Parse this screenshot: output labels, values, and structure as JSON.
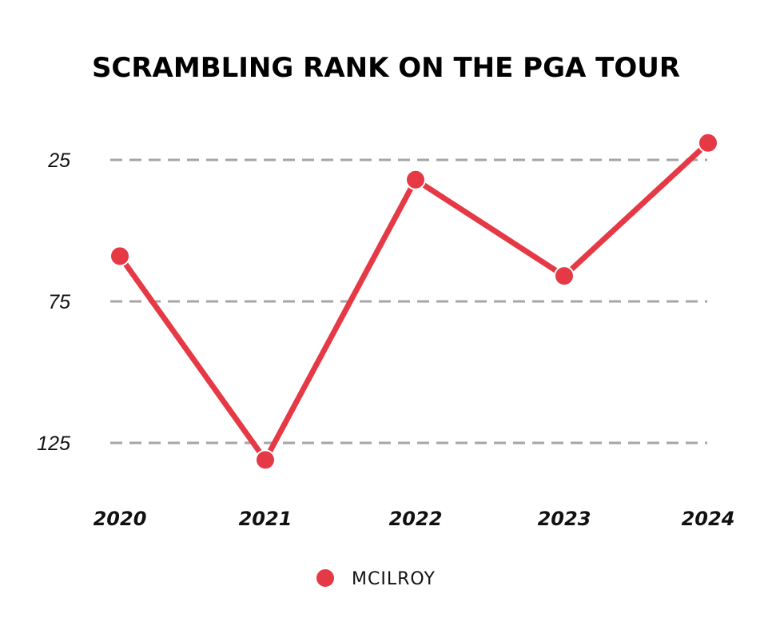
{
  "chart_data": {
    "type": "line",
    "title": "SCRAMBLING RANK ON THE PGA TOUR",
    "xlabel": "",
    "ylabel": "",
    "categories": [
      "2020",
      "2021",
      "2022",
      "2023",
      "2024"
    ],
    "series": [
      {
        "name": "MCILROY",
        "color": "#e63946",
        "values": [
          59,
          131,
          32,
          66,
          19
        ]
      }
    ],
    "y_ticks": [
      25,
      75,
      125
    ],
    "y_tick_labels": [
      "25",
      "75",
      "125"
    ],
    "ylim": [
      140,
      15
    ],
    "y_inverted": true,
    "grid": "horizontal dashed",
    "grid_color": "#a6a6a6",
    "legend": "bottom-center"
  }
}
